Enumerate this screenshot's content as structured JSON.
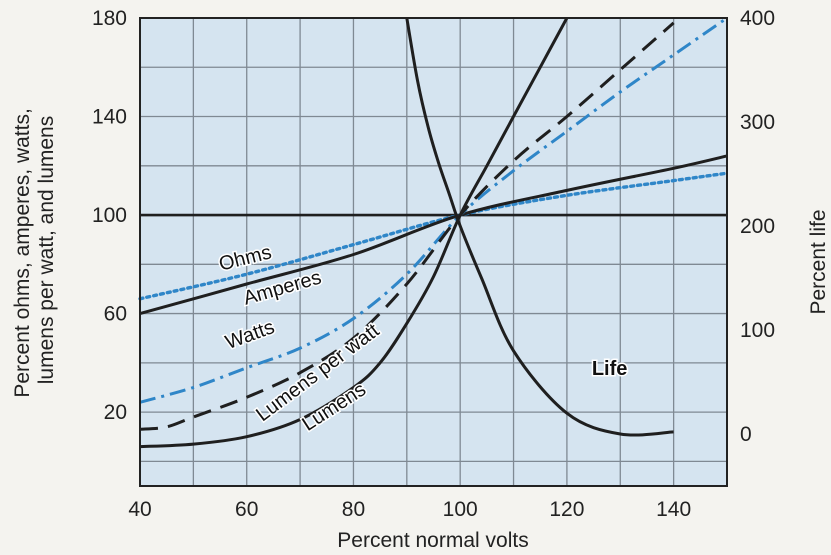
{
  "chart_data": {
    "type": "line",
    "title": "",
    "xlabel": "Percent normal volts",
    "ylabel_left": "Percent ohms, amperes, watts, lumens per watt, and lumens",
    "ylabel_right": "Percent life",
    "xlim": [
      40,
      150
    ],
    "ylim_left": [
      -10,
      180
    ],
    "ylim_right": [
      -50,
      400
    ],
    "x_ticks": [
      40,
      60,
      80,
      100,
      120,
      140
    ],
    "y_ticks_left": [
      20,
      60,
      100,
      140,
      180
    ],
    "y_ticks_right": [
      0,
      100,
      200,
      300,
      400
    ],
    "grid": true,
    "colors": {
      "plot_background": "#d5e4f0",
      "grid": "#7f8993",
      "black_series": "#1f1f1f",
      "blue_series": "#2f86c8"
    },
    "series": [
      {
        "name": "Ohms",
        "axis": "left",
        "color": "#2f86c8",
        "dash": "dotted",
        "x": [
          40,
          60,
          80,
          100,
          120,
          140,
          150
        ],
        "y": [
          66,
          76,
          88,
          100,
          108,
          114,
          117
        ]
      },
      {
        "name": "Amperes",
        "axis": "left",
        "color": "#1f1f1f",
        "dash": "solid",
        "x": [
          40,
          60,
          80,
          100,
          120,
          140,
          150
        ],
        "y": [
          60,
          72,
          84,
          100,
          110,
          119,
          124
        ]
      },
      {
        "name": "Watts",
        "axis": "left",
        "color": "#2f86c8",
        "dash": "dashdot",
        "x": [
          40,
          50,
          60,
          70,
          80,
          90,
          100,
          110,
          120,
          130,
          140,
          150
        ],
        "y": [
          24,
          30,
          38,
          46,
          58,
          76,
          100,
          118,
          134,
          150,
          165,
          180
        ]
      },
      {
        "name": "Lumens per watt",
        "axis": "left",
        "color": "#1f1f1f",
        "dash": "dashed",
        "x": [
          40,
          45,
          50,
          60,
          70,
          80,
          90,
          100,
          110,
          120,
          130,
          140
        ],
        "y": [
          13,
          14,
          18,
          26,
          36,
          50,
          72,
          100,
          122,
          140,
          159,
          178
        ]
      },
      {
        "name": "Lumens",
        "axis": "left",
        "color": "#1f1f1f",
        "dash": "solid",
        "x": [
          40,
          50,
          60,
          70,
          80,
          85,
          90,
          95,
          100,
          105,
          110,
          115,
          120
        ],
        "y": [
          6,
          7,
          10,
          17,
          30,
          40,
          56,
          75,
          100,
          120,
          140,
          160,
          180
        ]
      },
      {
        "name": "Life",
        "axis": "right",
        "color": "#1f1f1f",
        "dash": "solid",
        "x": [
          90,
          92,
          94,
          96,
          98,
          100,
          104,
          110,
          120,
          130,
          140
        ],
        "y": [
          400,
          340,
          295,
          260,
          230,
          200,
          150,
          80,
          20,
          0,
          2
        ]
      }
    ],
    "labels": [
      {
        "text": "Ohms",
        "x": 60,
        "y": 80,
        "rotate": -14
      },
      {
        "text": "Amperes",
        "x": 67,
        "y": 68,
        "rotate": -16
      },
      {
        "text": "Watts",
        "x": 61,
        "y": 49,
        "rotate": -20
      },
      {
        "text": "Lumens per watt",
        "x": 74,
        "y": 34,
        "rotate": -37
      },
      {
        "text": "Lumens",
        "x": 77,
        "y": 20,
        "rotate": -33
      },
      {
        "text": "Life",
        "x": 128,
        "y": 35,
        "rotate": 0
      }
    ]
  }
}
